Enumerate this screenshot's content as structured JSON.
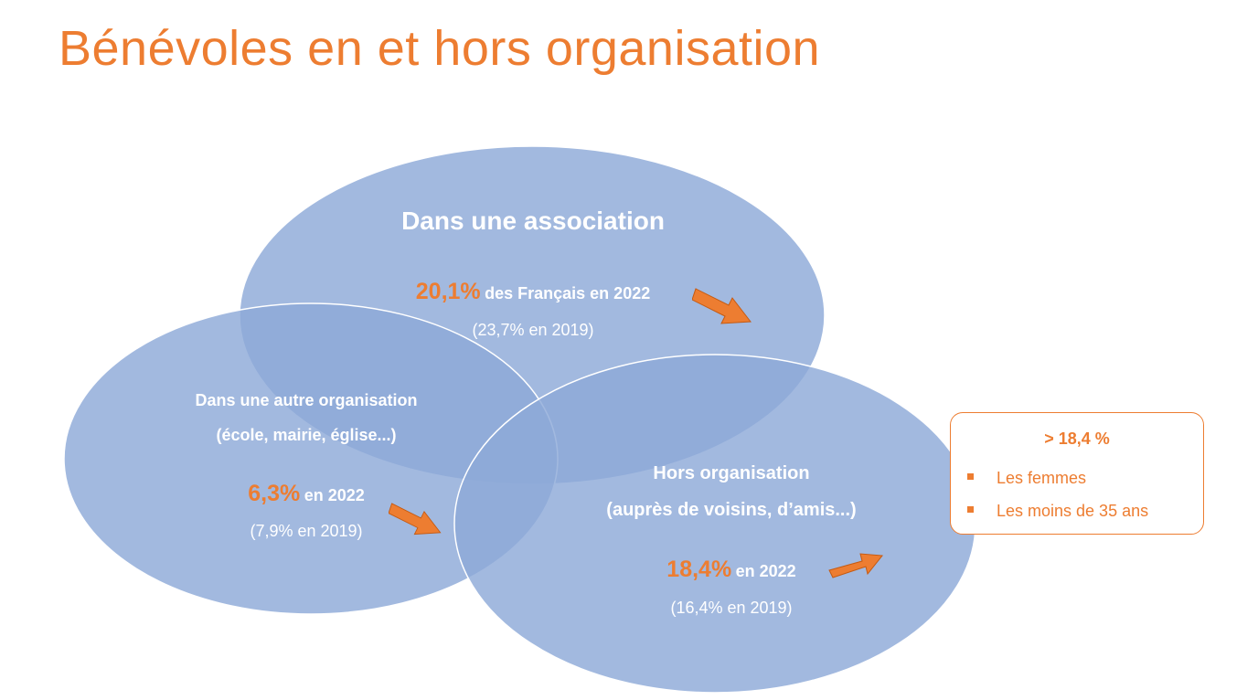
{
  "title": "Bénévoles en et hors organisation",
  "colors": {
    "accent": "#ED7D31",
    "circle_fill": "#8EA9D8",
    "circle_stroke": "#ffffff",
    "text_light": "#ffffff"
  },
  "circles": {
    "association": {
      "label": "Dans une association",
      "stat_value": "20,1%",
      "stat_text": "des Français en 2022",
      "previous": "(23,7% en 2019)",
      "trend": "down",
      "trend_icon": "arrow-down-right-icon"
    },
    "autre": {
      "label_line1": "Dans une autre organisation",
      "label_line2": "(école, mairie, église...)",
      "stat_value": "6,3%",
      "stat_text": "en 2022",
      "previous": "(7,9% en 2019)",
      "trend": "down",
      "trend_icon": "arrow-down-right-icon"
    },
    "hors": {
      "label_line1": "Hors organisation",
      "label_line2": "(auprès de voisins, d’amis...)",
      "stat_value": "18,4%",
      "stat_text": "en 2022",
      "previous": "(16,4% en 2019)",
      "trend": "up",
      "trend_icon": "arrow-up-right-icon"
    }
  },
  "callout": {
    "title": "> 18,4 %",
    "items": [
      "Les femmes",
      "Les moins de 35 ans"
    ]
  }
}
